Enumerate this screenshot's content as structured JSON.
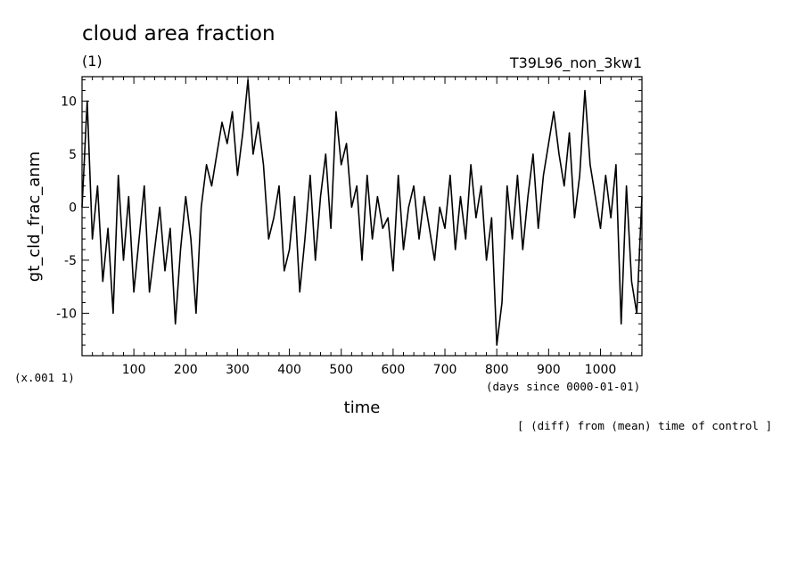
{
  "chart_data": {
    "type": "line",
    "title": "cloud area fraction",
    "subtitle_left": "(1)",
    "subtitle_right": "T39L96_non_3kw1",
    "xlabel": "time",
    "xunit": "(days since 0000-01-01)",
    "ylabel": "gt_cld_frac_anm",
    "yscale_note": "(x.001 1)",
    "footnote": "[ (diff) from (mean) time of control ]",
    "xlim": [
      0,
      1080
    ],
    "ylim": [
      -14,
      12.3
    ],
    "xticks": [
      100,
      200,
      300,
      400,
      500,
      600,
      700,
      800,
      900,
      1000
    ],
    "yticks": [
      10,
      5,
      0,
      -5,
      -10
    ],
    "grid": false,
    "color": "#000000",
    "series": [
      {
        "x": [
          0,
          10,
          20,
          30,
          40,
          50,
          60,
          70,
          80,
          90,
          100,
          110,
          120,
          130,
          140,
          150,
          160,
          170,
          180,
          190,
          200,
          210,
          220,
          230,
          240,
          250,
          260,
          270,
          280,
          290,
          300,
          310,
          320,
          330,
          340,
          350,
          360,
          370,
          380,
          390,
          400,
          410,
          420,
          430,
          440,
          450,
          460,
          470,
          480,
          490,
          500,
          510,
          520,
          530,
          540,
          550,
          560,
          570,
          580,
          590,
          600,
          610,
          620,
          630,
          640,
          650,
          660,
          670,
          680,
          690,
          700,
          710,
          720,
          730,
          740,
          750,
          760,
          770,
          780,
          790,
          800,
          810,
          820,
          830,
          840,
          850,
          860,
          870,
          880,
          890,
          900,
          910,
          920,
          930,
          940,
          950,
          960,
          970,
          980,
          990,
          1000,
          1010,
          1020,
          1030,
          1040,
          1050,
          1060,
          1070,
          1080
        ],
        "y": [
          0,
          10,
          -3,
          2,
          -7,
          -2,
          -10,
          3,
          -5,
          1,
          -8,
          -3,
          2,
          -8,
          -4,
          0,
          -6,
          -2,
          -11,
          -4,
          1,
          -3,
          -10,
          0,
          4,
          2,
          5,
          8,
          6,
          9,
          3,
          7,
          12,
          5,
          8,
          4,
          -3,
          -1,
          2,
          -6,
          -4,
          1,
          -8,
          -3,
          3,
          -5,
          1,
          5,
          -2,
          9,
          4,
          6,
          0,
          2,
          -5,
          3,
          -3,
          1,
          -2,
          -1,
          -6,
          3,
          -4,
          0,
          2,
          -3,
          1,
          -2,
          -5,
          0,
          -2,
          3,
          -4,
          1,
          -3,
          4,
          -1,
          2,
          -5,
          -1,
          -13,
          -9,
          2,
          -3,
          3,
          -4,
          1,
          5,
          -2,
          3,
          6,
          9,
          5,
          2,
          7,
          -1,
          3,
          11,
          4,
          1,
          -2,
          3,
          -1,
          4,
          -11,
          2,
          -7,
          -10,
          1
        ]
      }
    ]
  }
}
